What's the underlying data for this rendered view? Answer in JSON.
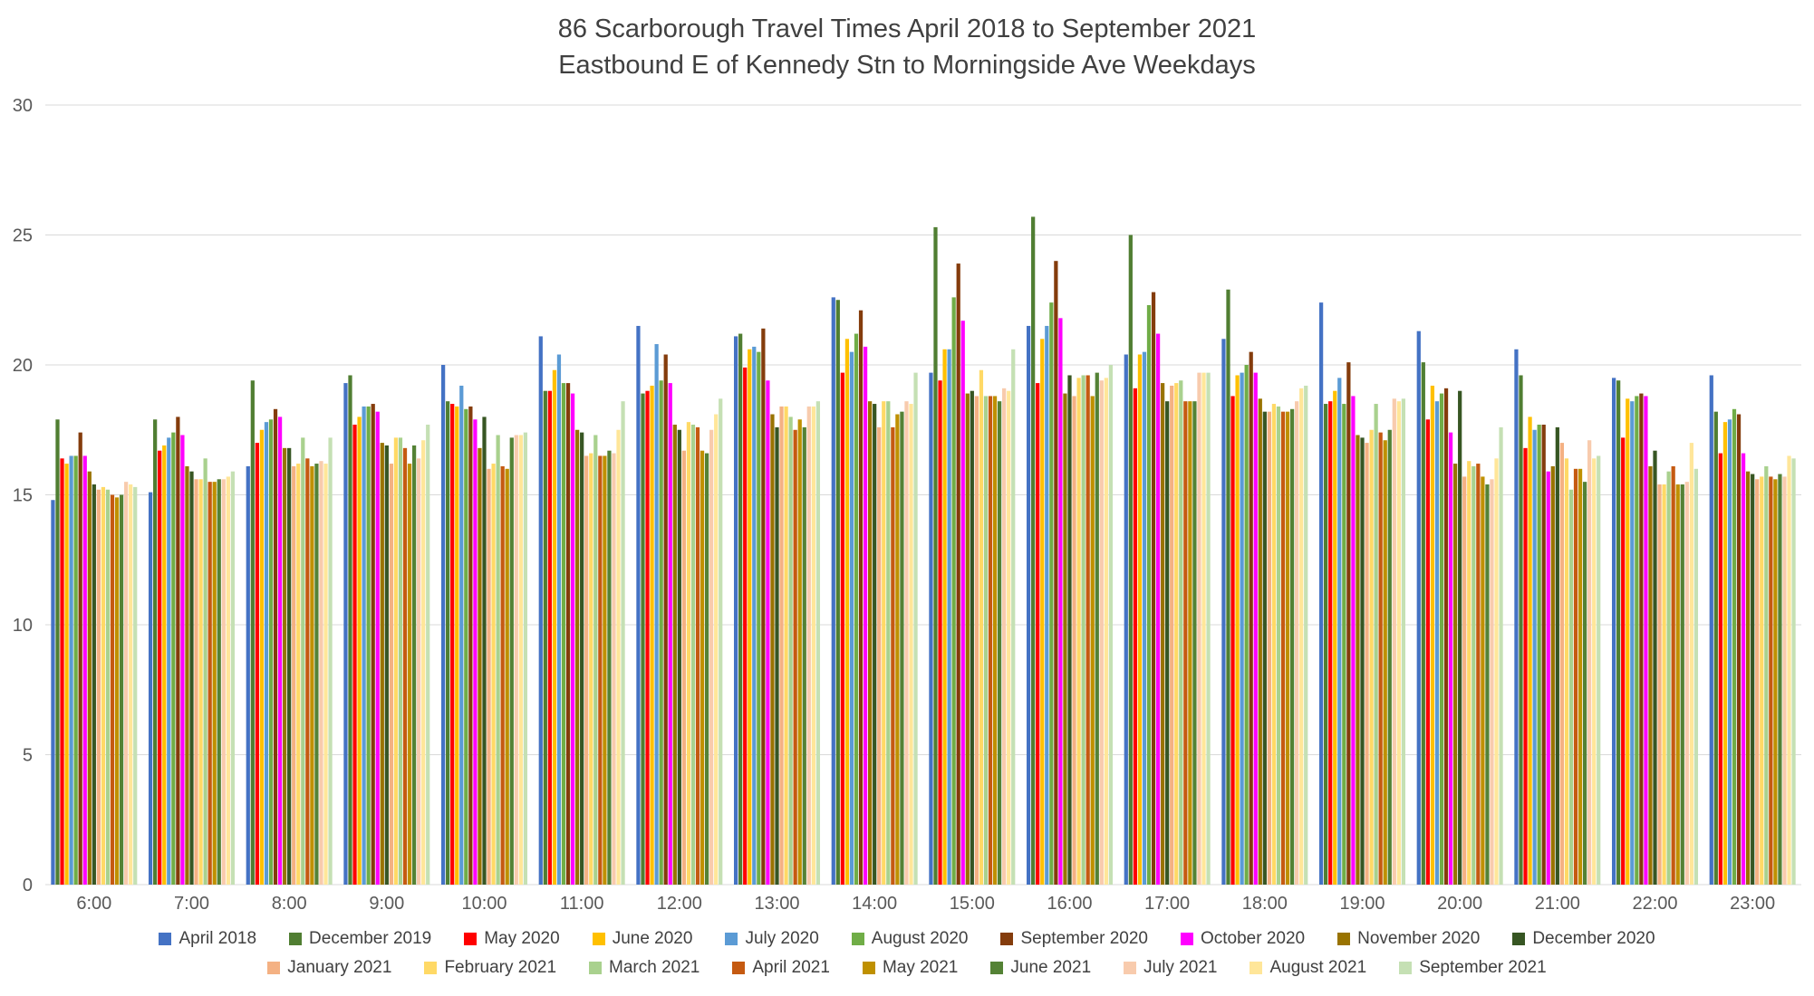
{
  "chart_data": {
    "type": "bar",
    "title": "86 Scarborough Travel Times April 2018 to September 2021",
    "subtitle": "Eastbound E of Kennedy Stn to Morningside Ave Weekdays",
    "xlabel": "",
    "ylabel": "",
    "ylim": [
      0,
      30
    ],
    "yticks": [
      0,
      5,
      10,
      15,
      20,
      25,
      30
    ],
    "grid": true,
    "legend_position": "bottom",
    "legend_rows": [
      10,
      9
    ],
    "categories": [
      "6:00",
      "7:00",
      "8:00",
      "9:00",
      "10:00",
      "11:00",
      "12:00",
      "13:00",
      "14:00",
      "15:00",
      "16:00",
      "17:00",
      "18:00",
      "19:00",
      "20:00",
      "21:00",
      "22:00",
      "23:00"
    ],
    "series": [
      {
        "name": "April 2018",
        "color": "#4472C4",
        "values": [
          14.8,
          15.1,
          16.1,
          19.3,
          20.0,
          21.1,
          21.5,
          21.1,
          22.6,
          19.7,
          21.5,
          20.4,
          21.0,
          22.4,
          21.3,
          20.6,
          19.5,
          19.6
        ]
      },
      {
        "name": "December 2019",
        "color": "#507E32",
        "values": [
          17.9,
          17.9,
          19.4,
          19.6,
          18.6,
          19.0,
          18.9,
          21.2,
          22.5,
          25.3,
          25.7,
          25.0,
          22.9,
          18.5,
          20.1,
          19.6,
          19.4,
          18.2
        ]
      },
      {
        "name": "May 2020",
        "color": "#FF0000",
        "values": [
          16.4,
          16.7,
          17.0,
          17.7,
          18.5,
          19.0,
          19.0,
          19.9,
          19.7,
          19.4,
          19.3,
          19.1,
          18.8,
          18.6,
          17.9,
          16.8,
          17.2,
          16.6
        ]
      },
      {
        "name": "June 2020",
        "color": "#FFC000",
        "values": [
          16.2,
          16.9,
          17.5,
          18.0,
          18.4,
          19.8,
          19.2,
          20.6,
          21.0,
          20.6,
          21.0,
          20.4,
          19.6,
          19.0,
          19.2,
          18.0,
          18.7,
          17.8
        ]
      },
      {
        "name": "July 2020",
        "color": "#5B9BD5",
        "values": [
          16.5,
          17.2,
          17.8,
          18.4,
          19.2,
          20.4,
          20.8,
          20.7,
          20.5,
          20.6,
          21.5,
          20.5,
          19.7,
          19.5,
          18.6,
          17.5,
          18.6,
          17.9
        ]
      },
      {
        "name": "August 2020",
        "color": "#70AD47",
        "values": [
          16.5,
          17.4,
          17.9,
          18.4,
          18.3,
          19.3,
          19.4,
          20.5,
          21.2,
          22.6,
          22.4,
          22.3,
          20.0,
          18.5,
          18.9,
          17.7,
          18.8,
          18.3
        ]
      },
      {
        "name": "September 2020",
        "color": "#843C0C",
        "values": [
          17.4,
          18.0,
          18.3,
          18.5,
          18.4,
          19.3,
          20.4,
          21.4,
          22.1,
          23.9,
          24.0,
          22.8,
          20.5,
          20.1,
          19.1,
          17.7,
          18.9,
          18.1
        ]
      },
      {
        "name": "October 2020",
        "color": "#FF00FF",
        "values": [
          16.5,
          17.3,
          18.0,
          18.2,
          17.9,
          18.9,
          19.3,
          19.4,
          20.7,
          21.7,
          21.8,
          21.2,
          19.7,
          18.8,
          17.4,
          15.9,
          18.8,
          16.6
        ]
      },
      {
        "name": "November 2020",
        "color": "#997300",
        "values": [
          15.9,
          16.1,
          16.8,
          17.0,
          16.8,
          17.5,
          17.7,
          18.1,
          18.6,
          18.9,
          18.9,
          19.3,
          18.7,
          17.3,
          16.2,
          16.1,
          16.1,
          15.9
        ]
      },
      {
        "name": "December 2020",
        "color": "#375623",
        "values": [
          15.4,
          15.9,
          16.8,
          16.9,
          18.0,
          17.4,
          17.5,
          17.6,
          18.5,
          19.0,
          19.6,
          18.6,
          18.2,
          17.2,
          19.0,
          17.6,
          16.7,
          15.8
        ]
      },
      {
        "name": "January 2021",
        "color": "#F4B183",
        "values": [
          15.2,
          15.6,
          16.1,
          16.2,
          16.0,
          16.5,
          16.7,
          18.4,
          17.6,
          18.8,
          18.8,
          19.2,
          18.2,
          17.0,
          15.7,
          17.0,
          15.4,
          15.6
        ]
      },
      {
        "name": "February 2021",
        "color": "#FFD966",
        "values": [
          15.3,
          15.6,
          16.2,
          17.2,
          16.2,
          16.6,
          17.8,
          18.4,
          18.6,
          19.8,
          19.5,
          19.3,
          18.5,
          17.5,
          16.3,
          16.4,
          15.4,
          15.7
        ]
      },
      {
        "name": "March 2021",
        "color": "#A9D18E",
        "values": [
          15.2,
          16.4,
          17.2,
          17.2,
          17.3,
          17.3,
          17.7,
          18.0,
          18.6,
          18.8,
          19.6,
          19.4,
          18.4,
          18.5,
          16.1,
          15.2,
          15.9,
          16.1
        ]
      },
      {
        "name": "April 2021",
        "color": "#C55A11",
        "values": [
          15.0,
          15.5,
          16.4,
          16.8,
          16.1,
          16.5,
          17.6,
          17.5,
          17.6,
          18.8,
          19.6,
          18.6,
          18.2,
          17.4,
          16.2,
          16.0,
          16.1,
          15.7
        ]
      },
      {
        "name": "May 2021",
        "color": "#BF9000",
        "values": [
          14.9,
          15.5,
          16.1,
          16.2,
          16.0,
          16.5,
          16.7,
          17.9,
          18.1,
          18.8,
          18.8,
          18.6,
          18.2,
          17.1,
          15.7,
          16.0,
          15.4,
          15.6
        ]
      },
      {
        "name": "June 2021",
        "color": "#548235",
        "values": [
          15.0,
          15.6,
          16.2,
          16.9,
          17.2,
          16.7,
          16.6,
          17.6,
          18.2,
          18.6,
          19.7,
          18.6,
          18.3,
          17.5,
          15.4,
          15.5,
          15.4,
          15.8
        ]
      },
      {
        "name": "July 2021",
        "color": "#F8CBAD",
        "values": [
          15.5,
          15.6,
          16.3,
          16.4,
          17.3,
          16.6,
          17.5,
          18.4,
          18.6,
          19.1,
          19.4,
          19.7,
          18.6,
          18.7,
          15.6,
          17.1,
          15.5,
          15.7
        ]
      },
      {
        "name": "August 2021",
        "color": "#FFE699",
        "values": [
          15.4,
          15.7,
          16.2,
          17.1,
          17.3,
          17.5,
          18.1,
          18.4,
          18.5,
          19.0,
          19.5,
          19.7,
          19.1,
          18.6,
          16.4,
          16.4,
          17.0,
          16.5
        ]
      },
      {
        "name": "September 2021",
        "color": "#C5E0B4",
        "values": [
          15.3,
          15.9,
          17.2,
          17.7,
          17.4,
          18.6,
          18.7,
          18.6,
          19.7,
          20.6,
          20.0,
          19.7,
          19.2,
          18.7,
          17.6,
          16.5,
          16.0,
          16.4
        ]
      }
    ]
  },
  "style": {
    "background": "#FFFFFF",
    "gridline_color": "#D9D9D9",
    "axis_text_color": "#595959",
    "title_color": "#404040"
  }
}
